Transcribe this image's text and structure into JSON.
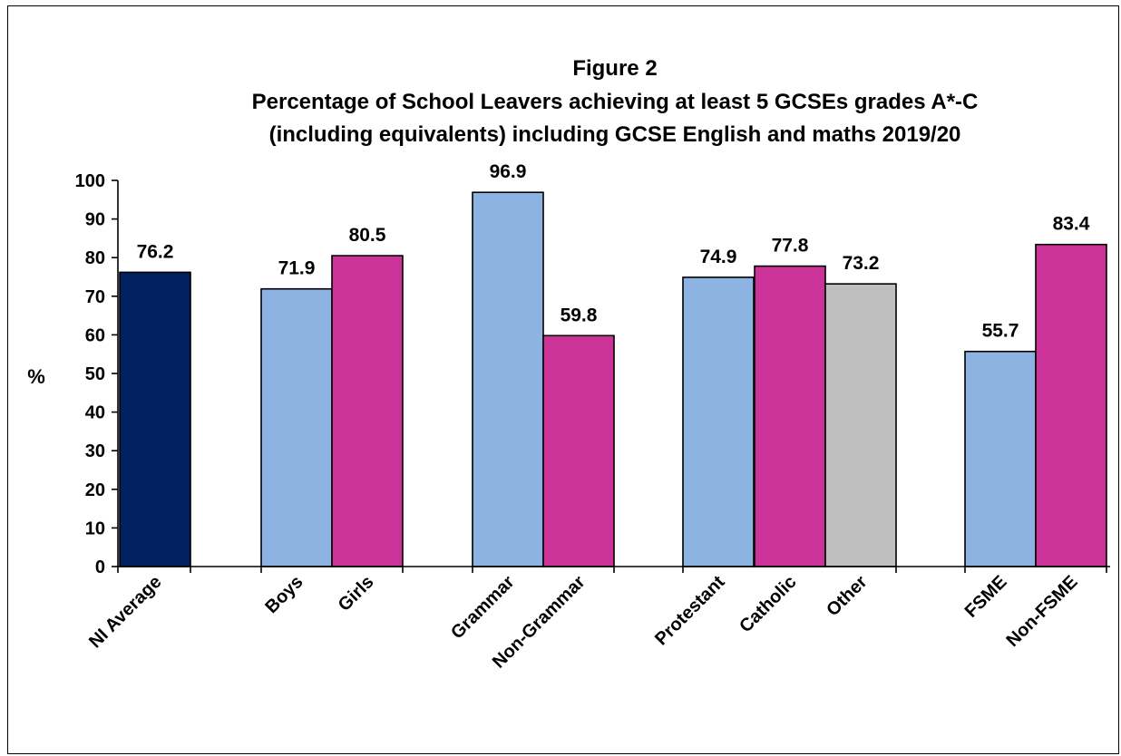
{
  "chart_data": {
    "type": "bar",
    "title_lines": [
      "Figure 2",
      "Percentage of School Leavers achieving at least 5 GCSEs grades A*-C",
      "(including equivalents) including GCSE English and maths 2019/20"
    ],
    "ylabel": "%",
    "xlabel": "",
    "ylim": [
      0,
      100
    ],
    "ytick_step": 10,
    "grid": false,
    "legend": "none",
    "bars": [
      {
        "category": "NI Average",
        "value": 76.2,
        "label": "76.2",
        "color": "#002060"
      },
      {
        "category": "Boys",
        "value": 71.9,
        "label": "71.9",
        "color": "#8DB3E2"
      },
      {
        "category": "Girls",
        "value": 80.5,
        "label": "80.5",
        "color": "#CC3399"
      },
      {
        "category": "Grammar",
        "value": 96.9,
        "label": "96.9",
        "color": "#8DB3E2"
      },
      {
        "category": "Non-Grammar",
        "value": 59.8,
        "label": "59.8",
        "color": "#CC3399"
      },
      {
        "category": "Protestant",
        "value": 74.9,
        "label": "74.9",
        "color": "#8DB3E2"
      },
      {
        "category": "Catholic",
        "value": 77.8,
        "label": "77.8",
        "color": "#CC3399"
      },
      {
        "category": "Other",
        "value": 73.2,
        "label": "73.2",
        "color": "#BFBFBF"
      },
      {
        "category": "FSME",
        "value": 55.7,
        "label": "55.7",
        "color": "#8DB3E2"
      },
      {
        "category": "Non-FSME",
        "value": 83.4,
        "label": "83.4",
        "color": "#CC3399"
      }
    ]
  }
}
